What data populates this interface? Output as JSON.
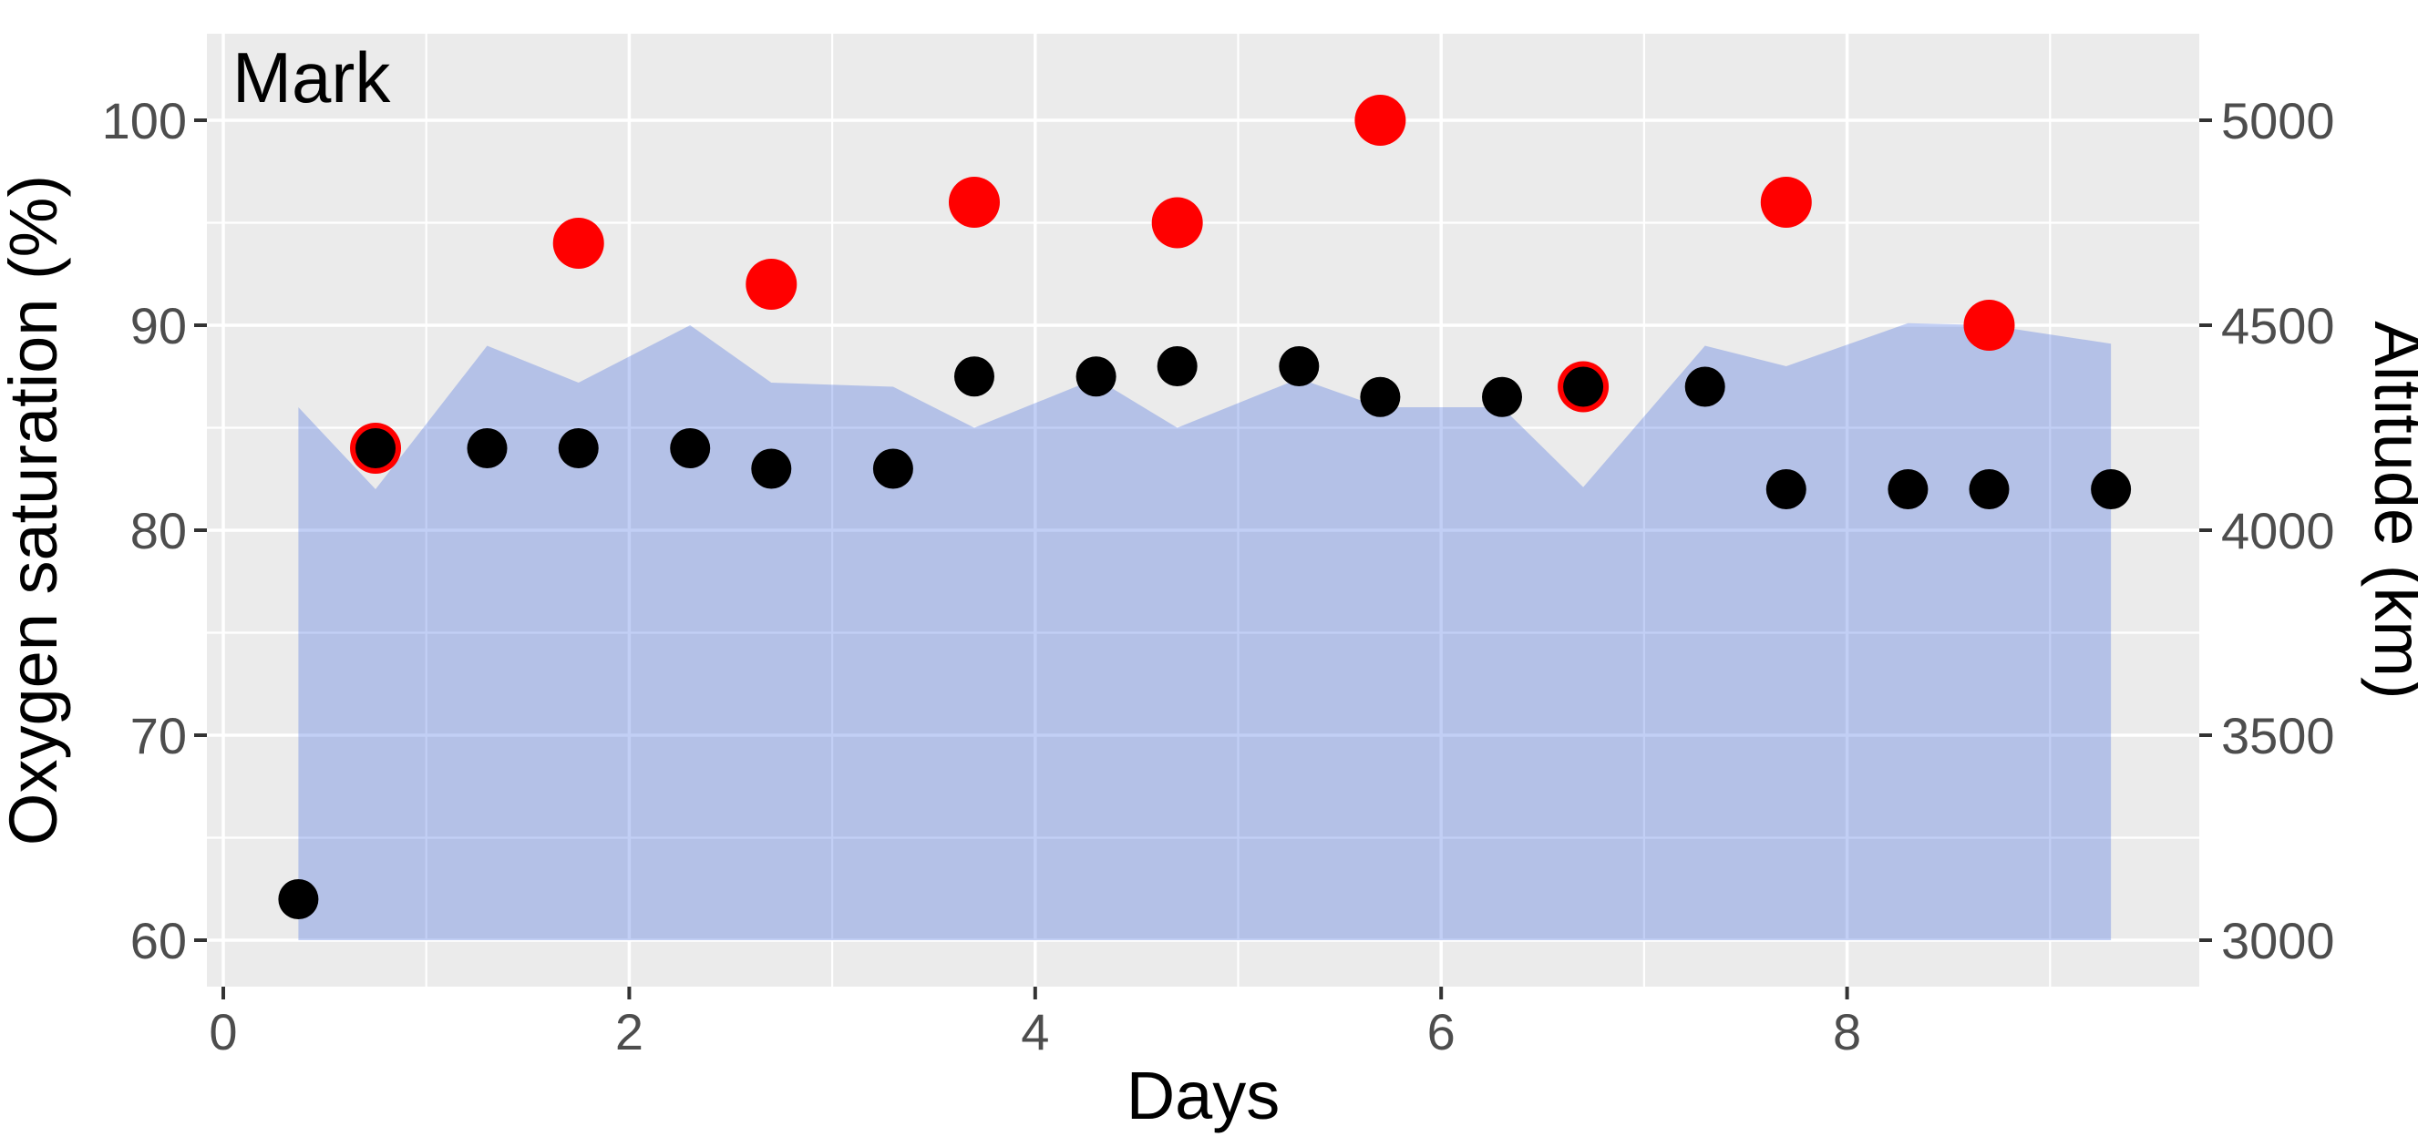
{
  "title": "Mark",
  "colors": {
    "panel_background": "#EBEBEB",
    "gridline": "#FFFFFF",
    "tick_mark": "#333333",
    "tick_label": "#4D4D4D",
    "area_fill_base": "#4169E1",
    "area_fill_alpha": 0.32,
    "red_marker": "#FF0000",
    "black_marker": "#000000",
    "title_color": "#000000"
  },
  "chart_data": {
    "type": "mixed",
    "title": "Mark",
    "xlabel": "Days",
    "ylabel_left": "Oxygen saturation (%)",
    "ylabel_right": "Altitude (km)",
    "x_axis": {
      "major_ticks": [
        0,
        2,
        4,
        6,
        8
      ],
      "minor_gridlines": [
        1,
        3,
        5,
        7,
        9
      ],
      "range_days": [
        -0.08,
        9.73
      ]
    },
    "y_axis_left": {
      "major_ticks": [
        60,
        70,
        80,
        90,
        100
      ],
      "minor_gridlines": [
        65,
        75,
        85,
        95
      ],
      "range": [
        55.8,
        104.3
      ],
      "unit": "%"
    },
    "y_axis_right": {
      "major_ticks": [
        3000,
        3500,
        4000,
        4500,
        5000
      ],
      "unit": "km",
      "alignment": "3000 km aligns with 60 %, 5000 km aligns with 100 %"
    },
    "grid": true,
    "legend": "none",
    "series": [
      {
        "name": "altitude_area",
        "type": "area",
        "axis": "right",
        "unit": "km",
        "baseline_km": 3000,
        "points": [
          [
            0.37,
            4300
          ],
          [
            0.75,
            4100
          ],
          [
            1.3,
            4450
          ],
          [
            1.75,
            4360
          ],
          [
            2.3,
            4500
          ],
          [
            2.7,
            4360
          ],
          [
            3.3,
            4350
          ],
          [
            3.7,
            4250
          ],
          [
            4.3,
            4370
          ],
          [
            4.7,
            4250
          ],
          [
            5.3,
            4370
          ],
          [
            5.7,
            4300
          ],
          [
            6.3,
            4300
          ],
          [
            6.7,
            4105
          ],
          [
            7.3,
            4450
          ],
          [
            7.7,
            4400
          ],
          [
            8.3,
            4505
          ],
          [
            8.7,
            4500
          ],
          [
            9.3,
            4455
          ]
        ]
      },
      {
        "name": "red_markers",
        "type": "scatter",
        "axis": "left",
        "unit": "%",
        "marker_radius_px": 28,
        "points": [
          [
            0.75,
            84
          ],
          [
            1.75,
            94
          ],
          [
            2.7,
            92
          ],
          [
            3.7,
            96
          ],
          [
            4.7,
            95
          ],
          [
            5.7,
            100
          ],
          [
            6.7,
            87
          ],
          [
            7.7,
            96
          ],
          [
            8.7,
            90
          ]
        ]
      },
      {
        "name": "black_markers",
        "type": "scatter",
        "axis": "left",
        "unit": "%",
        "marker_radius_px": 22,
        "points": [
          [
            0.37,
            62
          ],
          [
            0.75,
            84
          ],
          [
            1.3,
            84
          ],
          [
            1.75,
            84
          ],
          [
            2.3,
            84
          ],
          [
            2.7,
            83
          ],
          [
            3.3,
            83
          ],
          [
            3.7,
            87.5
          ],
          [
            4.3,
            87.5
          ],
          [
            4.7,
            88
          ],
          [
            5.3,
            88
          ],
          [
            5.7,
            86.5
          ],
          [
            6.3,
            86.5
          ],
          [
            6.7,
            87
          ],
          [
            7.3,
            87
          ],
          [
            7.7,
            82
          ],
          [
            8.3,
            82
          ],
          [
            8.7,
            82
          ],
          [
            9.3,
            82
          ]
        ]
      }
    ]
  }
}
